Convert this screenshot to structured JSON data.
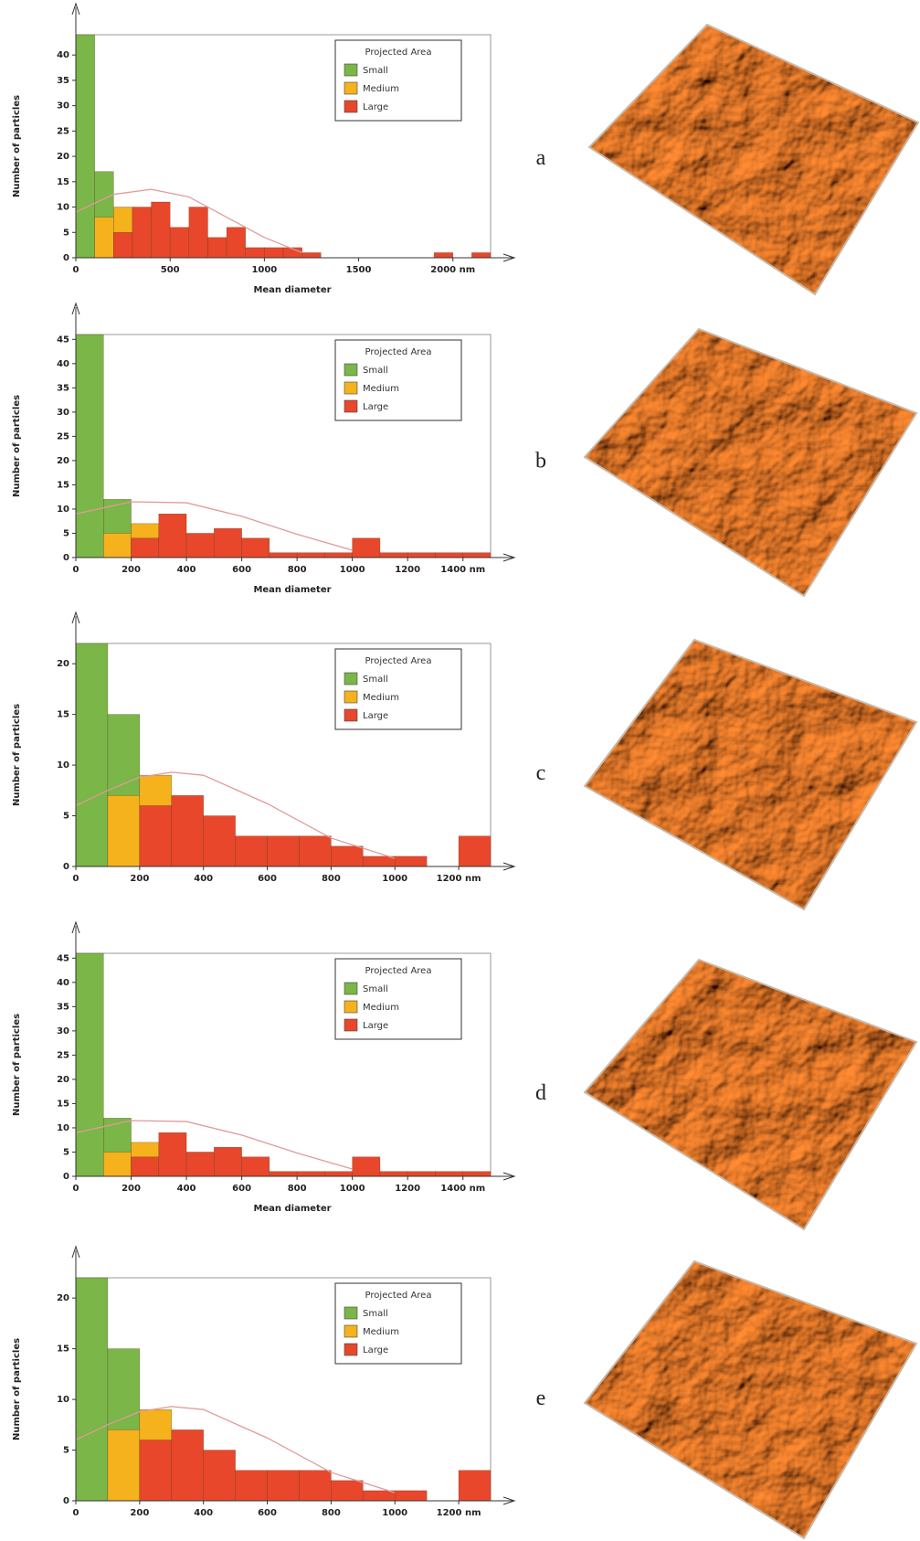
{
  "chart_data": [
    {
      "type": "histogram",
      "panel_label": "a",
      "y_label": "Number of particles",
      "x_label": "Mean diameter",
      "legend_title": "Projected Area",
      "legend": "upper right",
      "bins": [
        0,
        100,
        200,
        300,
        400,
        500,
        600,
        700,
        800,
        900,
        1000,
        1100,
        1200,
        1300,
        1400,
        1500,
        1600,
        1700,
        1800,
        1900,
        2000,
        2100,
        2200
      ],
      "xlim": [
        0,
        2200
      ],
      "ylim": [
        0,
        44
      ],
      "xticks": [
        0,
        500,
        1000,
        1500,
        {
          "value": 2000,
          "label": "2000 nm"
        }
      ],
      "yticks": [
        0,
        5,
        10,
        15,
        20,
        25,
        30,
        35,
        40
      ],
      "series": [
        {
          "name": "Small",
          "color": "#7ab648",
          "values": [
            44,
            17,
            0,
            0,
            0,
            0,
            0,
            0,
            0,
            0,
            0,
            0,
            0,
            0,
            0,
            0,
            0,
            0,
            0,
            0,
            0,
            0
          ]
        },
        {
          "name": "Medium",
          "color": "#f5b21c",
          "values": [
            0,
            8,
            10,
            0,
            0,
            0,
            0,
            0,
            0,
            0,
            0,
            0,
            0,
            0,
            0,
            0,
            0,
            0,
            0,
            0,
            0,
            0
          ]
        },
        {
          "name": "Large",
          "color": "#e8472b",
          "values": [
            0,
            0,
            5,
            10,
            11,
            6,
            10,
            4,
            6,
            2,
            2,
            2,
            1,
            0,
            0,
            0,
            0,
            0,
            0,
            1,
            0,
            1
          ]
        }
      ],
      "fit": {
        "color": "#e29a9a",
        "x": [
          0,
          200,
          400,
          600,
          800,
          1000,
          1200
        ],
        "y": [
          9,
          12.5,
          13.5,
          12,
          8,
          4,
          1
        ]
      }
    },
    {
      "type": "histogram",
      "panel_label": "b",
      "y_label": "Number of particles",
      "x_label": "Mean diameter",
      "legend_title": "Projected Area",
      "legend": "upper right",
      "bins": [
        0,
        100,
        200,
        300,
        400,
        500,
        600,
        700,
        800,
        900,
        1000,
        1100,
        1200,
        1300,
        1400,
        1500
      ],
      "xlim": [
        0,
        1500
      ],
      "ylim": [
        0,
        46
      ],
      "xticks": [
        0,
        200,
        400,
        600,
        800,
        1000,
        1200,
        {
          "value": 1400,
          "label": "1400 nm"
        }
      ],
      "yticks": [
        0,
        5,
        10,
        15,
        20,
        25,
        30,
        35,
        40,
        45
      ],
      "series": [
        {
          "name": "Small",
          "color": "#7ab648",
          "values": [
            46,
            12,
            0,
            0,
            0,
            0,
            0,
            0,
            0,
            0,
            0,
            0,
            0,
            0,
            0
          ]
        },
        {
          "name": "Medium",
          "color": "#f5b21c",
          "values": [
            0,
            5,
            7,
            0,
            0,
            0,
            0,
            0,
            0,
            0,
            0,
            0,
            0,
            0,
            0
          ]
        },
        {
          "name": "Large",
          "color": "#e8472b",
          "values": [
            0,
            0,
            4,
            9,
            5,
            6,
            4,
            1,
            1,
            1,
            4,
            1,
            1,
            1,
            1
          ]
        }
      ],
      "fit": {
        "color": "#e29a9a",
        "x": [
          0,
          200,
          400,
          600,
          800,
          1000
        ],
        "y": [
          9,
          11.5,
          11.3,
          8.5,
          4.8,
          1.5
        ]
      }
    },
    {
      "type": "histogram",
      "panel_label": "c",
      "y_label": "Number of particles",
      "legend_title": "Projected Area",
      "legend": "upper right",
      "bins": [
        0,
        100,
        200,
        300,
        400,
        500,
        600,
        700,
        800,
        900,
        1000,
        1100,
        1200,
        1300
      ],
      "xlim": [
        0,
        1300
      ],
      "ylim": [
        0,
        22
      ],
      "xticks": [
        0,
        200,
        400,
        600,
        800,
        1000,
        {
          "value": 1200,
          "label": "1200 nm"
        }
      ],
      "yticks": [
        0,
        5,
        10,
        15,
        20
      ],
      "series": [
        {
          "name": "Small",
          "color": "#7ab648",
          "values": [
            22,
            15,
            0,
            0,
            0,
            0,
            0,
            0,
            0,
            0,
            0,
            0,
            0
          ]
        },
        {
          "name": "Medium",
          "color": "#f5b21c",
          "values": [
            0,
            7,
            9,
            0,
            0,
            0,
            0,
            0,
            0,
            0,
            0,
            0,
            0
          ]
        },
        {
          "name": "Large",
          "color": "#e8472b",
          "values": [
            0,
            0,
            6,
            7,
            5,
            3,
            3,
            3,
            2,
            1,
            1,
            0,
            3
          ]
        }
      ],
      "fit": {
        "color": "#e29a9a",
        "x": [
          0,
          100,
          200,
          300,
          400,
          600,
          800,
          1000
        ],
        "y": [
          6,
          7.5,
          8.8,
          9.3,
          9,
          6.2,
          2.8,
          0.8
        ]
      }
    },
    {
      "type": "histogram",
      "panel_label": "d",
      "y_label": "Number of particles",
      "x_label": "Mean diameter",
      "legend_title": "Projected Area",
      "legend": "upper right",
      "bins": [
        0,
        100,
        200,
        300,
        400,
        500,
        600,
        700,
        800,
        900,
        1000,
        1100,
        1200,
        1300,
        1400,
        1500
      ],
      "xlim": [
        0,
        1500
      ],
      "ylim": [
        0,
        46
      ],
      "xticks": [
        0,
        200,
        400,
        600,
        800,
        1000,
        1200,
        {
          "value": 1400,
          "label": "1400 nm"
        }
      ],
      "yticks": [
        0,
        5,
        10,
        15,
        20,
        25,
        30,
        35,
        40,
        45
      ],
      "series": [
        {
          "name": "Small",
          "color": "#7ab648",
          "values": [
            46,
            12,
            0,
            0,
            0,
            0,
            0,
            0,
            0,
            0,
            0,
            0,
            0,
            0,
            0
          ]
        },
        {
          "name": "Medium",
          "color": "#f5b21c",
          "values": [
            0,
            5,
            7,
            0,
            0,
            0,
            0,
            0,
            0,
            0,
            0,
            0,
            0,
            0,
            0
          ]
        },
        {
          "name": "Large",
          "color": "#e8472b",
          "values": [
            0,
            0,
            4,
            9,
            5,
            6,
            4,
            1,
            1,
            1,
            4,
            1,
            1,
            1,
            1
          ]
        }
      ],
      "fit": {
        "color": "#e29a9a",
        "x": [
          0,
          200,
          400,
          600,
          800,
          1000
        ],
        "y": [
          9,
          11.5,
          11.3,
          8.5,
          4.8,
          1.5
        ]
      }
    },
    {
      "type": "histogram",
      "panel_label": "e",
      "y_label": "Number of particles",
      "legend_title": "Projected Area",
      "legend": "upper right",
      "bins": [
        0,
        100,
        200,
        300,
        400,
        500,
        600,
        700,
        800,
        900,
        1000,
        1100,
        1200,
        1300
      ],
      "xlim": [
        0,
        1300
      ],
      "ylim": [
        0,
        22
      ],
      "xticks": [
        0,
        200,
        400,
        600,
        800,
        1000,
        {
          "value": 1200,
          "label": "1200 nm"
        }
      ],
      "yticks": [
        0,
        5,
        10,
        15,
        20
      ],
      "series": [
        {
          "name": "Small",
          "color": "#7ab648",
          "values": [
            22,
            15,
            0,
            0,
            0,
            0,
            0,
            0,
            0,
            0,
            0,
            0,
            0
          ]
        },
        {
          "name": "Medium",
          "color": "#f5b21c",
          "values": [
            0,
            7,
            9,
            0,
            0,
            0,
            0,
            0,
            0,
            0,
            0,
            0,
            0
          ]
        },
        {
          "name": "Large",
          "color": "#e8472b",
          "values": [
            0,
            0,
            6,
            7,
            5,
            3,
            3,
            3,
            2,
            1,
            1,
            0,
            3
          ]
        }
      ],
      "fit": {
        "color": "#e29a9a",
        "x": [
          0,
          100,
          200,
          300,
          400,
          600,
          800,
          1000
        ],
        "y": [
          6,
          7.5,
          8.8,
          9.3,
          9,
          6.2,
          2.8,
          0.8
        ]
      }
    }
  ]
}
